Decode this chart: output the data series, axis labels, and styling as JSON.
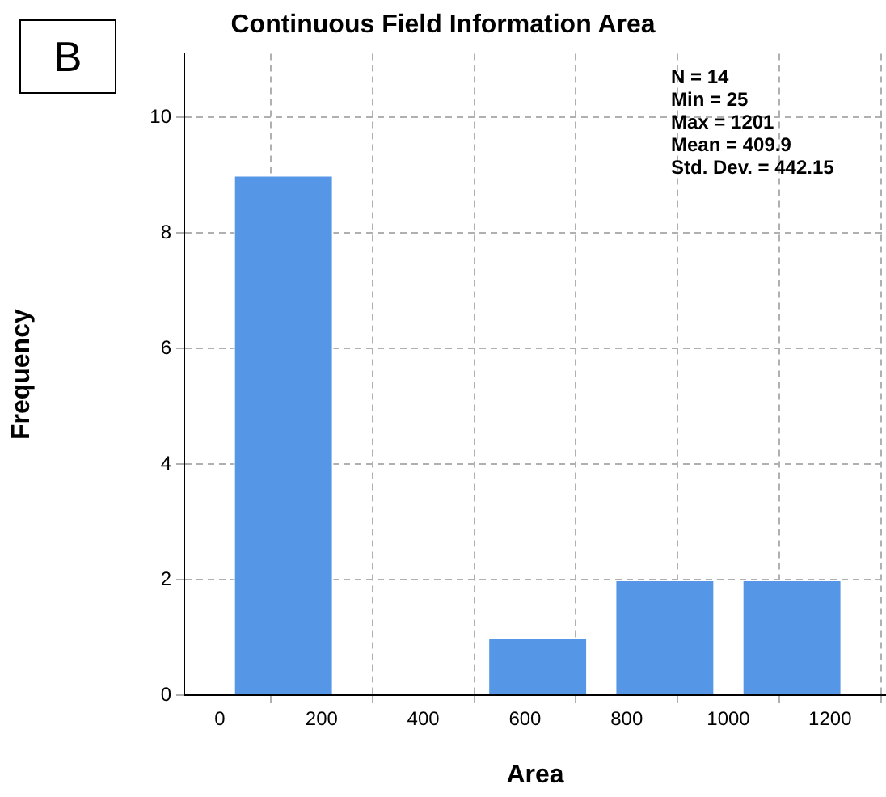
{
  "chart_data": {
    "type": "histogram",
    "title": "Continuous Field Information Area",
    "xlabel": "Area",
    "ylabel": "Frequency",
    "bins": [
      0,
      250,
      500,
      750,
      1000,
      1250
    ],
    "values": [
      9,
      0,
      1,
      2,
      2
    ],
    "color": "#5596e6",
    "xlim": [
      -70,
      1310
    ],
    "xticks": [
      0,
      200,
      400,
      600,
      800,
      1000,
      1200
    ],
    "ylim": [
      0,
      11.1
    ],
    "yticks": [
      0,
      2,
      4,
      6,
      8,
      10
    ],
    "grid": true,
    "annotations": [
      "B",
      "N = 14",
      "Min = 25",
      "Max = 1201",
      "Mean = 409.9",
      "Std. Dev. = 442.15"
    ]
  }
}
